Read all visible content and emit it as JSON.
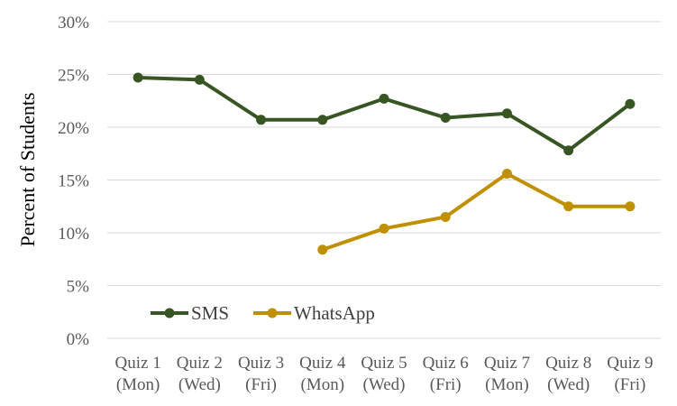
{
  "chart_data": {
    "type": "line",
    "title": "",
    "xlabel": "",
    "ylabel": "Percent of Students",
    "ylim": [
      0,
      30
    ],
    "y_ticks": [
      "0%",
      "5%",
      "10%",
      "15%",
      "20%",
      "25%",
      "30%"
    ],
    "y_tick_values": [
      0,
      5,
      10,
      15,
      20,
      25,
      30
    ],
    "grid": true,
    "legend_position": "bottom-left",
    "categories": [
      [
        "Quiz 1",
        "(Mon)"
      ],
      [
        "Quiz 2",
        "(Wed)"
      ],
      [
        "Quiz 3",
        "(Fri)"
      ],
      [
        "Quiz 4",
        "(Mon)"
      ],
      [
        "Quiz 5",
        "(Wed)"
      ],
      [
        "Quiz 6",
        "(Fri)"
      ],
      [
        "Quiz 7",
        "(Mon)"
      ],
      [
        "Quiz 8",
        "(Wed)"
      ],
      [
        "Quiz 9",
        "(Fri)"
      ]
    ],
    "series": [
      {
        "name": "SMS",
        "color": "#375623",
        "values": [
          24.7,
          24.5,
          20.7,
          20.7,
          22.7,
          20.9,
          21.3,
          17.8,
          22.2
        ]
      },
      {
        "name": "WhatsApp",
        "color": "#BF9000",
        "values": [
          null,
          null,
          null,
          8.4,
          10.4,
          11.5,
          15.6,
          12.5,
          12.5
        ]
      }
    ]
  }
}
